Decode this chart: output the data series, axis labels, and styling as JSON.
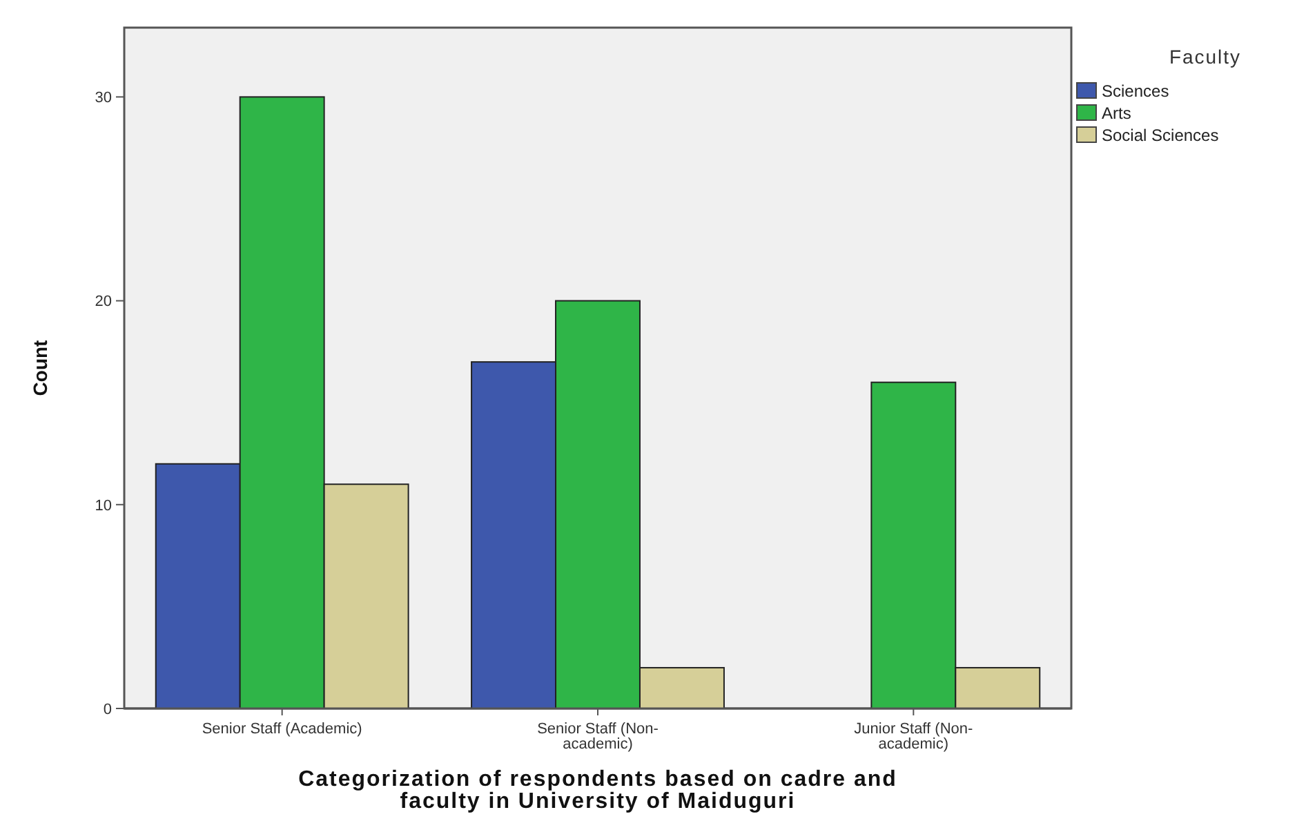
{
  "chart_data": {
    "type": "bar",
    "xlabel": "Categorization of respondents based on cadre and faculty in University of Maiduguri",
    "ylabel": "Count",
    "legend_title": "Faculty",
    "categories": [
      "Senior Staff (Academic)",
      "Senior Staff (Non-academic)",
      "Junior Staff (Non-academic)"
    ],
    "series": [
      {
        "name": "Sciences",
        "color": "#3e58ac",
        "values": [
          12,
          17,
          null
        ]
      },
      {
        "name": "Arts",
        "color": "#2fb548",
        "values": [
          30,
          20,
          16
        ]
      },
      {
        "name": "Social Sciences",
        "color": "#d6cf98",
        "values": [
          11,
          2,
          2
        ]
      }
    ],
    "ylim": [
      0,
      33.4
    ],
    "yticks": [
      0,
      10,
      20,
      30
    ],
    "grid": false,
    "legend": "top right"
  }
}
